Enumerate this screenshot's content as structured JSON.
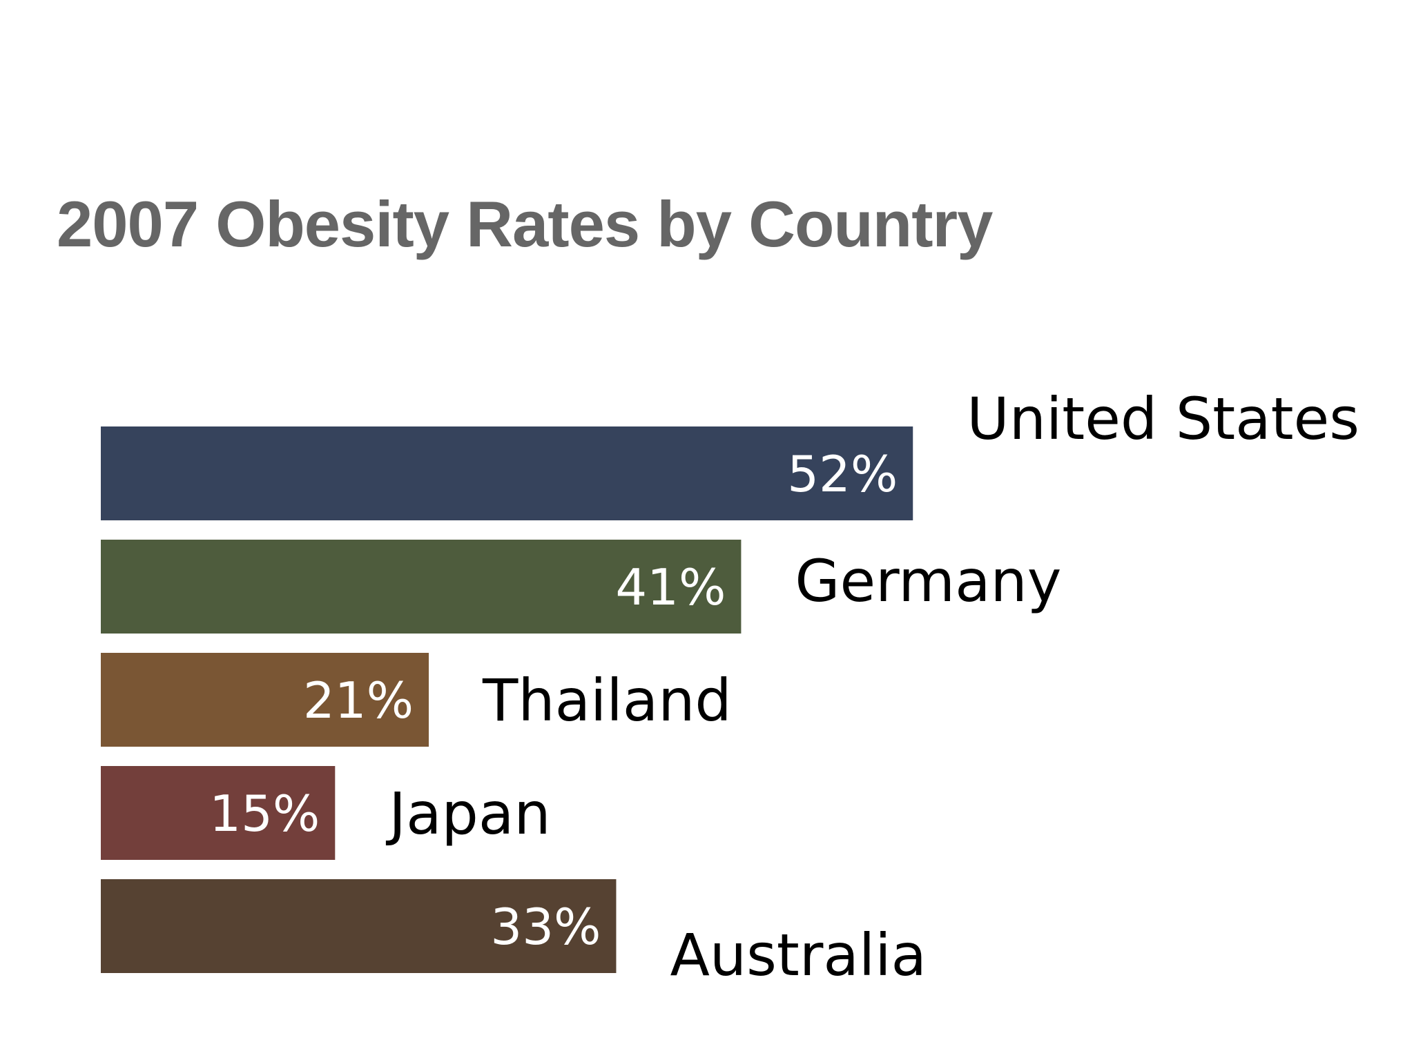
{
  "chart_data": {
    "type": "bar",
    "orientation": "horizontal",
    "title": "2007 Obesity Rates by Country",
    "xlabel": "",
    "ylabel": "",
    "xlim": [
      0,
      60
    ],
    "grid": false,
    "legend": "none",
    "categories": [
      "United States",
      "Germany",
      "Thailand",
      "Japan",
      "Australia"
    ],
    "values": [
      52,
      41,
      21,
      15,
      33
    ],
    "value_labels": [
      "52%",
      "41%",
      "21%",
      "15%",
      "33%"
    ],
    "colors": [
      "#36435c",
      "#4e5c3d",
      "#7a5634",
      "#733f3b",
      "#564232"
    ]
  }
}
